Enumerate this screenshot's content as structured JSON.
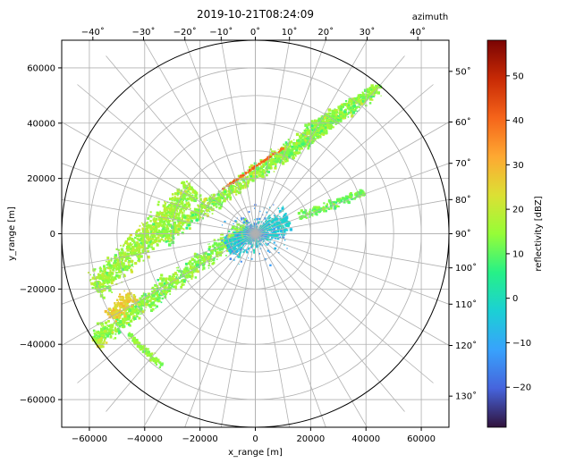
{
  "chart_data": {
    "type": "heatmap",
    "title": "2019-10-21T08:24:09",
    "xlabel": "x_range [m]",
    "ylabel": "y_range [m]",
    "xlim": [
      -70000,
      70000
    ],
    "ylim": [
      -70000,
      70000
    ],
    "x_ticks": [
      -60000,
      -40000,
      -20000,
      0,
      20000,
      40000,
      60000
    ],
    "y_ticks": [
      -60000,
      -40000,
      -20000,
      0,
      20000,
      40000,
      60000
    ],
    "x_tick_labels": [
      "−60000",
      "−40000",
      "−20000",
      "0",
      "20000",
      "40000",
      "60000"
    ],
    "y_tick_labels": [
      "−60000",
      "−40000",
      "−20000",
      "0",
      "20000",
      "40000",
      "60000"
    ],
    "grid": true,
    "range_rings_m": [
      10000,
      20000,
      30000,
      40000,
      50000,
      60000
    ],
    "max_range_m": 70000,
    "azimuth_spoke_step_deg": 10,
    "top_azimuth_label": "azimuth",
    "top_azimuth_ticks": [
      "−40˚",
      "−30˚",
      "−20˚",
      "−10˚",
      "0˚",
      "10˚",
      "20˚",
      "30˚",
      "40˚"
    ],
    "top_azimuth_values": [
      -40,
      -30,
      -20,
      -10,
      0,
      10,
      20,
      30,
      40
    ],
    "right_azimuth_ticks": [
      "50˚",
      "60˚",
      "70˚",
      "80˚",
      "90˚",
      "100˚",
      "110˚",
      "120˚",
      "130˚"
    ],
    "right_azimuth_values": [
      50,
      60,
      70,
      80,
      90,
      100,
      110,
      120,
      130
    ],
    "colorbar": {
      "label": "reflectivity [dBZ]",
      "range": [
        -29,
        58
      ],
      "ticks": [
        -20,
        -10,
        0,
        10,
        20,
        30,
        40,
        50
      ],
      "tick_labels": [
        "−20",
        "−10",
        "0",
        "10",
        "20",
        "30",
        "40",
        "50"
      ],
      "colormap": "turbo"
    },
    "echo_bands": [
      {
        "from": [
          -63000,
          -42000
        ],
        "to": [
          -2000,
          3000
        ],
        "width": 9000,
        "mean_dbz": 14,
        "spread": 10
      },
      {
        "from": [
          -58000,
          -20000
        ],
        "to": [
          -22000,
          16000
        ],
        "width": 13000,
        "mean_dbz": 16,
        "spread": 9
      },
      {
        "from": [
          -34000,
          -2000
        ],
        "to": [
          30000,
          43000
        ],
        "width": 8000,
        "mean_dbz": 15,
        "spread": 12
      },
      {
        "from": [
          8000,
          26000
        ],
        "to": [
          44000,
          52000
        ],
        "width": 6000,
        "mean_dbz": 13,
        "spread": 12
      },
      {
        "from": [
          18000,
          38000
        ],
        "to": [
          46000,
          54000
        ],
        "width": 3000,
        "mean_dbz": 14,
        "spread": 10
      },
      {
        "from": [
          16000,
          6000
        ],
        "to": [
          39000,
          15000
        ],
        "width": 4000,
        "mean_dbz": 11,
        "spread": 8
      },
      {
        "from": [
          -10000,
          -5000
        ],
        "to": [
          12000,
          5000
        ],
        "width": 12000,
        "mean_dbz": -3,
        "spread": 6
      },
      {
        "from": [
          -52000,
          -30000
        ],
        "to": [
          -44000,
          -22000
        ],
        "width": 8000,
        "mean_dbz": 26,
        "spread": 7
      },
      {
        "from": [
          -60000,
          -45000
        ],
        "to": [
          -55000,
          -38000
        ],
        "width": 6000,
        "mean_dbz": 20,
        "spread": 7
      },
      {
        "from": [
          -46000,
          -36000
        ],
        "to": [
          -34000,
          -48000
        ],
        "width": 3000,
        "mean_dbz": 14,
        "spread": 6
      }
    ],
    "peak_reflectivity_line": {
      "from": [
        -12000,
        16000
      ],
      "to": [
        10000,
        31000
      ],
      "dbz": 40
    }
  }
}
